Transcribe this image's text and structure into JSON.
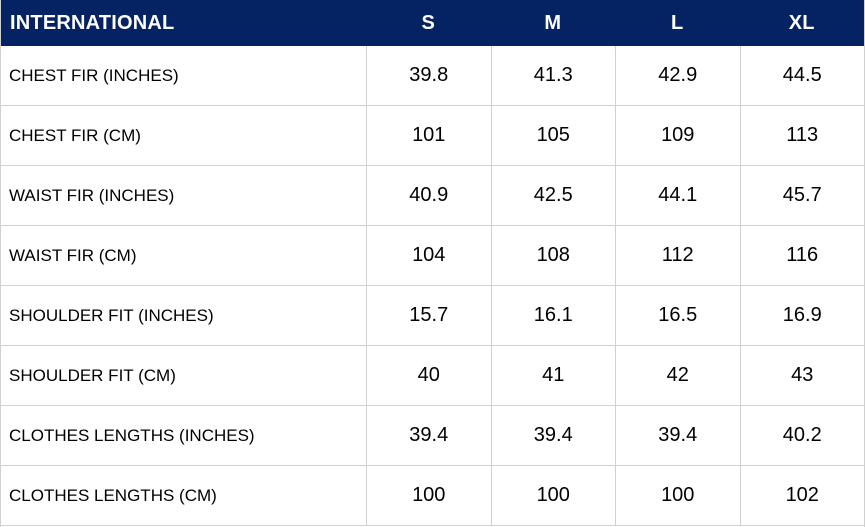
{
  "colors": {
    "header_bg": "#052262",
    "header_text": "#ffffff",
    "grid_line": "#d0d0d0",
    "cell_text": "#000000",
    "background": "#ffffff"
  },
  "chart_data": {
    "type": "table",
    "title": "INTERNATIONAL",
    "legend_position": "none",
    "grid": true,
    "header": {
      "label": "INTERNATIONAL",
      "columns": [
        "S",
        "M",
        "L",
        "XL"
      ]
    },
    "rows": [
      {
        "label": "CHEST FIR (INCHES)",
        "values": [
          "39.8",
          "41.3",
          "42.9",
          "44.5"
        ]
      },
      {
        "label": "CHEST FIR (CM)",
        "values": [
          "101",
          "105",
          "109",
          "113"
        ]
      },
      {
        "label": "WAIST FIR (INCHES)",
        "values": [
          "40.9",
          "42.5",
          "44.1",
          "45.7"
        ]
      },
      {
        "label": "WAIST FIR (CM)",
        "values": [
          "104",
          "108",
          "112",
          "116"
        ]
      },
      {
        "label": "SHOULDER FIT (INCHES)",
        "values": [
          "15.7",
          "16.1",
          "16.5",
          "16.9"
        ]
      },
      {
        "label": "SHOULDER FIT (CM)",
        "values": [
          "40",
          "41",
          "42",
          "43"
        ]
      },
      {
        "label": "CLOTHES LENGTHS (INCHES)",
        "values": [
          "39.4",
          "39.4",
          "39.4",
          "40.2"
        ]
      },
      {
        "label": "CLOTHES LENGTHS (CM)",
        "values": [
          "100",
          "100",
          "100",
          "102"
        ]
      }
    ]
  }
}
